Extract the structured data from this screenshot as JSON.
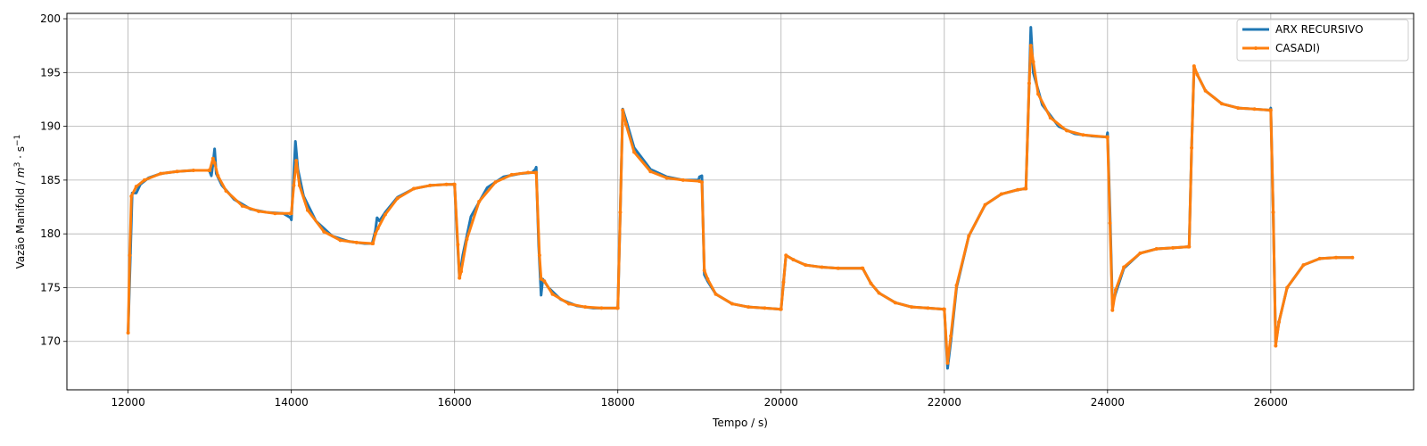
{
  "chart_data": {
    "type": "line",
    "title": "",
    "xlabel": "Tempo / s)",
    "ylabel_text": "Vazão Manifold / ",
    "ylabel_math": {
      "base": "m",
      "exp1": "3",
      "mid": " · s",
      "exp2": "−1"
    },
    "xlim": [
      11250,
      27750
    ],
    "ylim": [
      165.5,
      200.5
    ],
    "xticks": [
      12000,
      14000,
      16000,
      18000,
      20000,
      22000,
      24000,
      26000
    ],
    "yticks": [
      170,
      175,
      180,
      185,
      190,
      195,
      200
    ],
    "grid": true,
    "legend_position": "top-right",
    "series": [
      {
        "name": "ARX RECURSIVO",
        "color": "#1f77b4",
        "points": [
          [
            12000,
            170.8
          ],
          [
            12050,
            183.8
          ],
          [
            12100,
            183.8
          ],
          [
            12150,
            184.6
          ],
          [
            12250,
            185.2
          ],
          [
            12400,
            185.6
          ],
          [
            12600,
            185.8
          ],
          [
            12800,
            185.9
          ],
          [
            12990,
            185.9
          ],
          [
            13000,
            185.8
          ],
          [
            13020,
            185.4
          ],
          [
            13040,
            186.5
          ],
          [
            13060,
            187.9
          ],
          [
            13080,
            185.6
          ],
          [
            13150,
            184.5
          ],
          [
            13300,
            183.2
          ],
          [
            13500,
            182.3
          ],
          [
            13700,
            182.0
          ],
          [
            13900,
            181.9
          ],
          [
            13990,
            181.5
          ],
          [
            14000,
            181.3
          ],
          [
            14030,
            185.5
          ],
          [
            14050,
            188.6
          ],
          [
            14080,
            186.0
          ],
          [
            14150,
            183.5
          ],
          [
            14300,
            181.2
          ],
          [
            14500,
            179.8
          ],
          [
            14700,
            179.3
          ],
          [
            14900,
            179.1
          ],
          [
            14990,
            179.1
          ],
          [
            15000,
            179.4
          ],
          [
            15030,
            180.3
          ],
          [
            15050,
            181.5
          ],
          [
            15080,
            181.2
          ],
          [
            15150,
            182.0
          ],
          [
            15300,
            183.4
          ],
          [
            15500,
            184.2
          ],
          [
            15700,
            184.5
          ],
          [
            15900,
            184.6
          ],
          [
            15990,
            184.6
          ],
          [
            16000,
            184.6
          ],
          [
            16030,
            180.0
          ],
          [
            16060,
            175.9
          ],
          [
            16100,
            178.0
          ],
          [
            16200,
            181.6
          ],
          [
            16400,
            184.3
          ],
          [
            16600,
            185.3
          ],
          [
            16800,
            185.6
          ],
          [
            16950,
            185.7
          ],
          [
            16990,
            186.0
          ],
          [
            17000,
            186.2
          ],
          [
            17030,
            179.0
          ],
          [
            17060,
            174.3
          ],
          [
            17080,
            175.8
          ],
          [
            17150,
            175.0
          ],
          [
            17300,
            173.9
          ],
          [
            17500,
            173.3
          ],
          [
            17700,
            173.1
          ],
          [
            17990,
            173.1
          ],
          [
            18000,
            173.1
          ],
          [
            18030,
            182.0
          ],
          [
            18060,
            191.6
          ],
          [
            18100,
            190.6
          ],
          [
            18200,
            188.0
          ],
          [
            18400,
            186.0
          ],
          [
            18600,
            185.3
          ],
          [
            18800,
            185.0
          ],
          [
            18990,
            185.0
          ],
          [
            19000,
            185.3
          ],
          [
            19030,
            185.4
          ],
          [
            19060,
            176.2
          ],
          [
            19100,
            175.6
          ],
          [
            19200,
            174.4
          ],
          [
            19400,
            173.5
          ],
          [
            19600,
            173.2
          ],
          [
            19800,
            173.1
          ],
          [
            19990,
            173.0
          ],
          [
            20000,
            173.0
          ],
          [
            20030,
            175.5
          ],
          [
            20060,
            178.0
          ],
          [
            20150,
            177.6
          ],
          [
            20300,
            177.1
          ],
          [
            20500,
            176.9
          ],
          [
            20700,
            176.8
          ],
          [
            20990,
            176.8
          ],
          [
            21000,
            176.8
          ],
          [
            21100,
            175.4
          ],
          [
            21200,
            174.5
          ],
          [
            21400,
            173.6
          ],
          [
            21600,
            173.2
          ],
          [
            21800,
            173.1
          ],
          [
            21990,
            173.0
          ],
          [
            22000,
            173.0
          ],
          [
            22040,
            167.5
          ],
          [
            22080,
            170.0
          ],
          [
            22150,
            175.0
          ],
          [
            22300,
            179.8
          ],
          [
            22500,
            182.7
          ],
          [
            22700,
            183.7
          ],
          [
            22900,
            184.1
          ],
          [
            22990,
            184.2
          ],
          [
            23000,
            184.2
          ],
          [
            23040,
            194.0
          ],
          [
            23060,
            199.2
          ],
          [
            23090,
            195.0
          ],
          [
            23200,
            192.0
          ],
          [
            23400,
            190.0
          ],
          [
            23600,
            189.3
          ],
          [
            23800,
            189.1
          ],
          [
            23990,
            189.0
          ],
          [
            24000,
            189.4
          ],
          [
            24030,
            182.0
          ],
          [
            24060,
            173.4
          ],
          [
            24100,
            174.5
          ],
          [
            24200,
            176.8
          ],
          [
            24400,
            178.2
          ],
          [
            24600,
            178.6
          ],
          [
            24800,
            178.7
          ],
          [
            24990,
            178.8
          ],
          [
            25000,
            178.8
          ],
          [
            25030,
            188.0
          ],
          [
            25060,
            195.5
          ],
          [
            25100,
            194.8
          ],
          [
            25200,
            193.3
          ],
          [
            25400,
            192.1
          ],
          [
            25600,
            191.7
          ],
          [
            25800,
            191.6
          ],
          [
            25990,
            191.5
          ],
          [
            26000,
            191.7
          ],
          [
            26030,
            182.0
          ],
          [
            26060,
            169.8
          ],
          [
            26100,
            171.8
          ],
          [
            26200,
            175.0
          ],
          [
            26400,
            177.1
          ],
          [
            26600,
            177.7
          ],
          [
            26800,
            177.8
          ],
          [
            27000,
            177.8
          ]
        ]
      },
      {
        "name": "CASADI)",
        "color": "#ff7f0e",
        "points": [
          [
            12000,
            170.8
          ],
          [
            12020,
            178.0
          ],
          [
            12040,
            183.5
          ],
          [
            12100,
            184.4
          ],
          [
            12200,
            185.0
          ],
          [
            12400,
            185.6
          ],
          [
            12600,
            185.8
          ],
          [
            12800,
            185.9
          ],
          [
            12990,
            185.9
          ],
          [
            13000,
            185.9
          ],
          [
            13040,
            187.0
          ],
          [
            13060,
            186.6
          ],
          [
            13100,
            185.4
          ],
          [
            13200,
            184.0
          ],
          [
            13400,
            182.6
          ],
          [
            13600,
            182.1
          ],
          [
            13800,
            181.9
          ],
          [
            13990,
            181.9
          ],
          [
            14000,
            181.9
          ],
          [
            14030,
            184.5
          ],
          [
            14060,
            186.8
          ],
          [
            14100,
            184.5
          ],
          [
            14200,
            182.2
          ],
          [
            14400,
            180.2
          ],
          [
            14600,
            179.4
          ],
          [
            14800,
            179.2
          ],
          [
            14990,
            179.1
          ],
          [
            15000,
            179.1
          ],
          [
            15030,
            180.0
          ],
          [
            15060,
            180.5
          ],
          [
            15150,
            181.8
          ],
          [
            15300,
            183.3
          ],
          [
            15500,
            184.2
          ],
          [
            15700,
            184.5
          ],
          [
            15900,
            184.6
          ],
          [
            15990,
            184.6
          ],
          [
            16000,
            184.6
          ],
          [
            16040,
            179.0
          ],
          [
            16060,
            175.9
          ],
          [
            16080,
            176.5
          ],
          [
            16150,
            179.5
          ],
          [
            16300,
            183.0
          ],
          [
            16500,
            184.8
          ],
          [
            16700,
            185.5
          ],
          [
            16900,
            185.7
          ],
          [
            16990,
            185.7
          ],
          [
            17000,
            185.7
          ],
          [
            17040,
            178.0
          ],
          [
            17060,
            175.8
          ],
          [
            17100,
            175.6
          ],
          [
            17200,
            174.4
          ],
          [
            17400,
            173.5
          ],
          [
            17600,
            173.2
          ],
          [
            17800,
            173.1
          ],
          [
            17990,
            173.1
          ],
          [
            18000,
            173.1
          ],
          [
            18030,
            182.0
          ],
          [
            18060,
            191.5
          ],
          [
            18100,
            190.2
          ],
          [
            18200,
            187.6
          ],
          [
            18400,
            185.8
          ],
          [
            18600,
            185.2
          ],
          [
            18800,
            185.0
          ],
          [
            19000,
            184.9
          ],
          [
            19030,
            184.8
          ],
          [
            19060,
            176.6
          ],
          [
            19100,
            175.8
          ],
          [
            19200,
            174.4
          ],
          [
            19400,
            173.5
          ],
          [
            19600,
            173.2
          ],
          [
            19800,
            173.1
          ],
          [
            19990,
            173.0
          ],
          [
            20000,
            173.0
          ],
          [
            20030,
            175.5
          ],
          [
            20060,
            178.0
          ],
          [
            20150,
            177.6
          ],
          [
            20300,
            177.1
          ],
          [
            20500,
            176.9
          ],
          [
            20700,
            176.8
          ],
          [
            20990,
            176.8
          ],
          [
            21000,
            176.8
          ],
          [
            21100,
            175.4
          ],
          [
            21200,
            174.5
          ],
          [
            21400,
            173.6
          ],
          [
            21600,
            173.2
          ],
          [
            21800,
            173.1
          ],
          [
            21990,
            173.0
          ],
          [
            22000,
            173.0
          ],
          [
            22040,
            168.0
          ],
          [
            22080,
            170.5
          ],
          [
            22150,
            175.2
          ],
          [
            22300,
            179.8
          ],
          [
            22500,
            182.7
          ],
          [
            22700,
            183.7
          ],
          [
            22900,
            184.1
          ],
          [
            22990,
            184.2
          ],
          [
            23000,
            184.2
          ],
          [
            23040,
            194.0
          ],
          [
            23060,
            197.5
          ],
          [
            23090,
            196.0
          ],
          [
            23150,
            193.0
          ],
          [
            23300,
            190.8
          ],
          [
            23500,
            189.6
          ],
          [
            23700,
            189.2
          ],
          [
            23990,
            189.0
          ],
          [
            24000,
            189.0
          ],
          [
            24030,
            181.0
          ],
          [
            24060,
            172.9
          ],
          [
            24100,
            174.8
          ],
          [
            24200,
            176.9
          ],
          [
            24400,
            178.2
          ],
          [
            24600,
            178.6
          ],
          [
            24800,
            178.7
          ],
          [
            24990,
            178.8
          ],
          [
            25000,
            178.8
          ],
          [
            25030,
            188.0
          ],
          [
            25060,
            195.6
          ],
          [
            25100,
            194.8
          ],
          [
            25200,
            193.3
          ],
          [
            25400,
            192.1
          ],
          [
            25600,
            191.7
          ],
          [
            25800,
            191.6
          ],
          [
            25990,
            191.5
          ],
          [
            26000,
            191.5
          ],
          [
            26030,
            182.0
          ],
          [
            26060,
            169.6
          ],
          [
            26100,
            171.8
          ],
          [
            26200,
            175.0
          ],
          [
            26400,
            177.1
          ],
          [
            26600,
            177.7
          ],
          [
            26800,
            177.8
          ],
          [
            27000,
            177.8
          ]
        ]
      }
    ]
  }
}
